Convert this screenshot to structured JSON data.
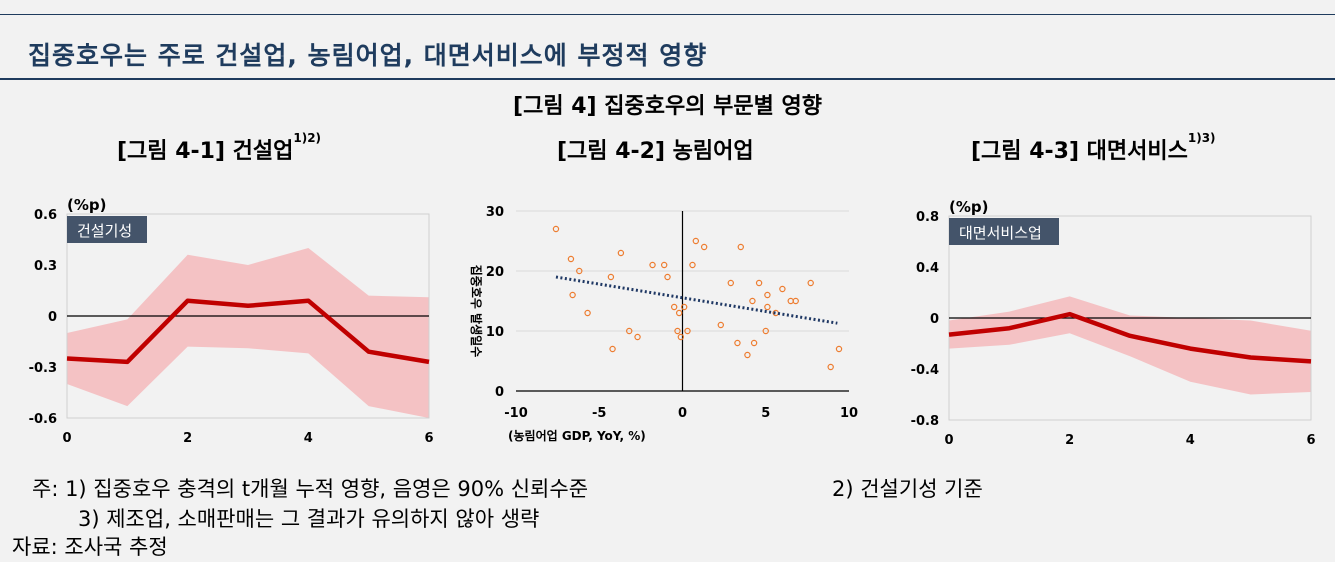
{
  "headline": "집중호우는 주로 건설업, 농림어업, 대면서비스에 부정적 영향",
  "figure_title": "[그림 4] 집중호우의 부문별 영향",
  "panels": [
    {
      "title": "[그림 4-1] 건설업",
      "title_sup": "1)2)"
    },
    {
      "title": "[그림 4-2] 농림어업",
      "title_sup": ""
    },
    {
      "title": "[그림 4-3] 대면서비스",
      "title_sup": "1)3)"
    }
  ],
  "notes": {
    "line1": "주: 1) 집중호우 충격의 t개월 누적 영향, 음영은 90% 신뢰수준",
    "line1_right": "2) 건설기성 기준",
    "line2": "3) 제조업, 소매판매는 그 결과가 유의하지 않아 생략",
    "source": "자료: 조사국 추정"
  },
  "colors": {
    "band": "#f4c2c4",
    "line": "#c00000",
    "badge": "#44546a",
    "scatter": "#ed7d31",
    "trend": "#1f3864"
  },
  "chart_data": [
    {
      "type": "line",
      "series_label": "건설기성",
      "unit_label": "(%p)",
      "x": [
        0,
        1,
        2,
        3,
        4,
        5,
        6
      ],
      "y": [
        -0.25,
        -0.27,
        0.09,
        0.06,
        0.09,
        -0.21,
        -0.27
      ],
      "lower": [
        -0.4,
        -0.53,
        -0.18,
        -0.19,
        -0.22,
        -0.53,
        -0.6
      ],
      "upper": [
        -0.1,
        -0.02,
        0.36,
        0.3,
        0.4,
        0.12,
        0.11
      ],
      "xlim": [
        0,
        6
      ],
      "ylim": [
        -0.6,
        0.6
      ],
      "xticks": [
        "0",
        "2",
        "4",
        "6"
      ],
      "yticks": [
        "0.6",
        "0.3",
        "0",
        "-0.3",
        "-0.6"
      ]
    },
    {
      "type": "scatter",
      "xlabel": "(농림어업 GDP, YoY, %)",
      "ylabel": "집중호우 발생일수",
      "xlim": [
        -10,
        10
      ],
      "ylim": [
        0,
        30
      ],
      "xticks": [
        "-10",
        "-5",
        "0",
        "5",
        "10"
      ],
      "yticks": [
        "30",
        "20",
        "10",
        "0"
      ],
      "points": [
        [
          -7.6,
          27
        ],
        [
          -6.7,
          22
        ],
        [
          -6.2,
          20
        ],
        [
          -6.6,
          16
        ],
        [
          -5.7,
          13
        ],
        [
          -4.3,
          19
        ],
        [
          -3.7,
          23
        ],
        [
          -4.2,
          7
        ],
        [
          -3.2,
          10
        ],
        [
          -2.7,
          9
        ],
        [
          -1.8,
          21
        ],
        [
          -1.1,
          21
        ],
        [
          -0.9,
          19
        ],
        [
          -0.5,
          14
        ],
        [
          -0.2,
          13
        ],
        [
          -0.3,
          10
        ],
        [
          0.1,
          14
        ],
        [
          -0.1,
          9
        ],
        [
          0.3,
          10
        ],
        [
          0.6,
          21
        ],
        [
          0.8,
          25
        ],
        [
          1.3,
          24
        ],
        [
          2.3,
          11
        ],
        [
          2.9,
          18
        ],
        [
          3.3,
          8
        ],
        [
          3.5,
          24
        ],
        [
          3.9,
          6
        ],
        [
          4.2,
          15
        ],
        [
          4.3,
          8
        ],
        [
          4.6,
          18
        ],
        [
          5.0,
          10
        ],
        [
          5.1,
          14
        ],
        [
          5.1,
          16
        ],
        [
          5.6,
          13
        ],
        [
          6.0,
          17
        ],
        [
          6.5,
          15
        ],
        [
          6.8,
          15
        ],
        [
          7.7,
          18
        ],
        [
          8.9,
          4
        ],
        [
          9.4,
          7
        ]
      ],
      "trend": [
        [
          -7.6,
          19.0
        ],
        [
          9.3,
          11.3
        ]
      ]
    },
    {
      "type": "line",
      "series_label": "대면서비스업",
      "unit_label": "(%p)",
      "x": [
        0,
        1,
        2,
        3,
        4,
        5,
        6
      ],
      "y": [
        -0.13,
        -0.08,
        0.03,
        -0.14,
        -0.24,
        -0.31,
        -0.34
      ],
      "lower": [
        -0.24,
        -0.21,
        -0.12,
        -0.3,
        -0.5,
        -0.6,
        -0.58
      ],
      "upper": [
        -0.02,
        0.05,
        0.17,
        0.02,
        0.0,
        -0.02,
        -0.1
      ],
      "xlim": [
        0,
        6
      ],
      "ylim": [
        -0.8,
        0.8
      ],
      "xticks": [
        "0",
        "2",
        "4",
        "6"
      ],
      "yticks": [
        "0.8",
        "0.4",
        "0",
        "-0.4",
        "-0.8"
      ]
    }
  ]
}
